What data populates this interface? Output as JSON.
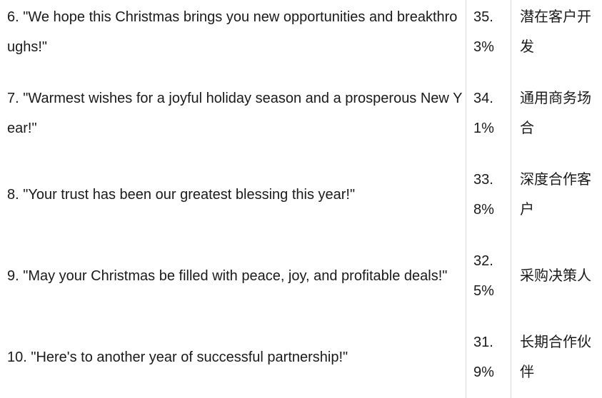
{
  "colors": {
    "background": "#ffffff",
    "text": "#1a1a1a",
    "border": "#d9d9d9"
  },
  "table": {
    "description": "cropped table of Christmas greeting messages with share percentage and audience category",
    "rows": [
      {
        "message": "6. \"We hope this Christmas brings you new opportunities and breakthroughs!\"",
        "share": "35.3%",
        "category": "潜在客户开发"
      },
      {
        "message": "7. \"Warmest wishes for a joyful holiday season and a prosperous New Year!\"",
        "share": "34.1%",
        "category": "通用商务场合"
      },
      {
        "message": "8. \"Your trust has been our greatest blessing this year!\"",
        "share": "33.8%",
        "category": "深度合作客户"
      },
      {
        "message": "9. \"May your Christmas be filled with peace, joy, and profitable deals!\"",
        "share": "32.5%",
        "category": "采购决策人"
      },
      {
        "message": "10. \"Here's to another year of successful partnership!\"",
        "share": "31.9%",
        "category": "长期合作伙伴"
      }
    ]
  }
}
